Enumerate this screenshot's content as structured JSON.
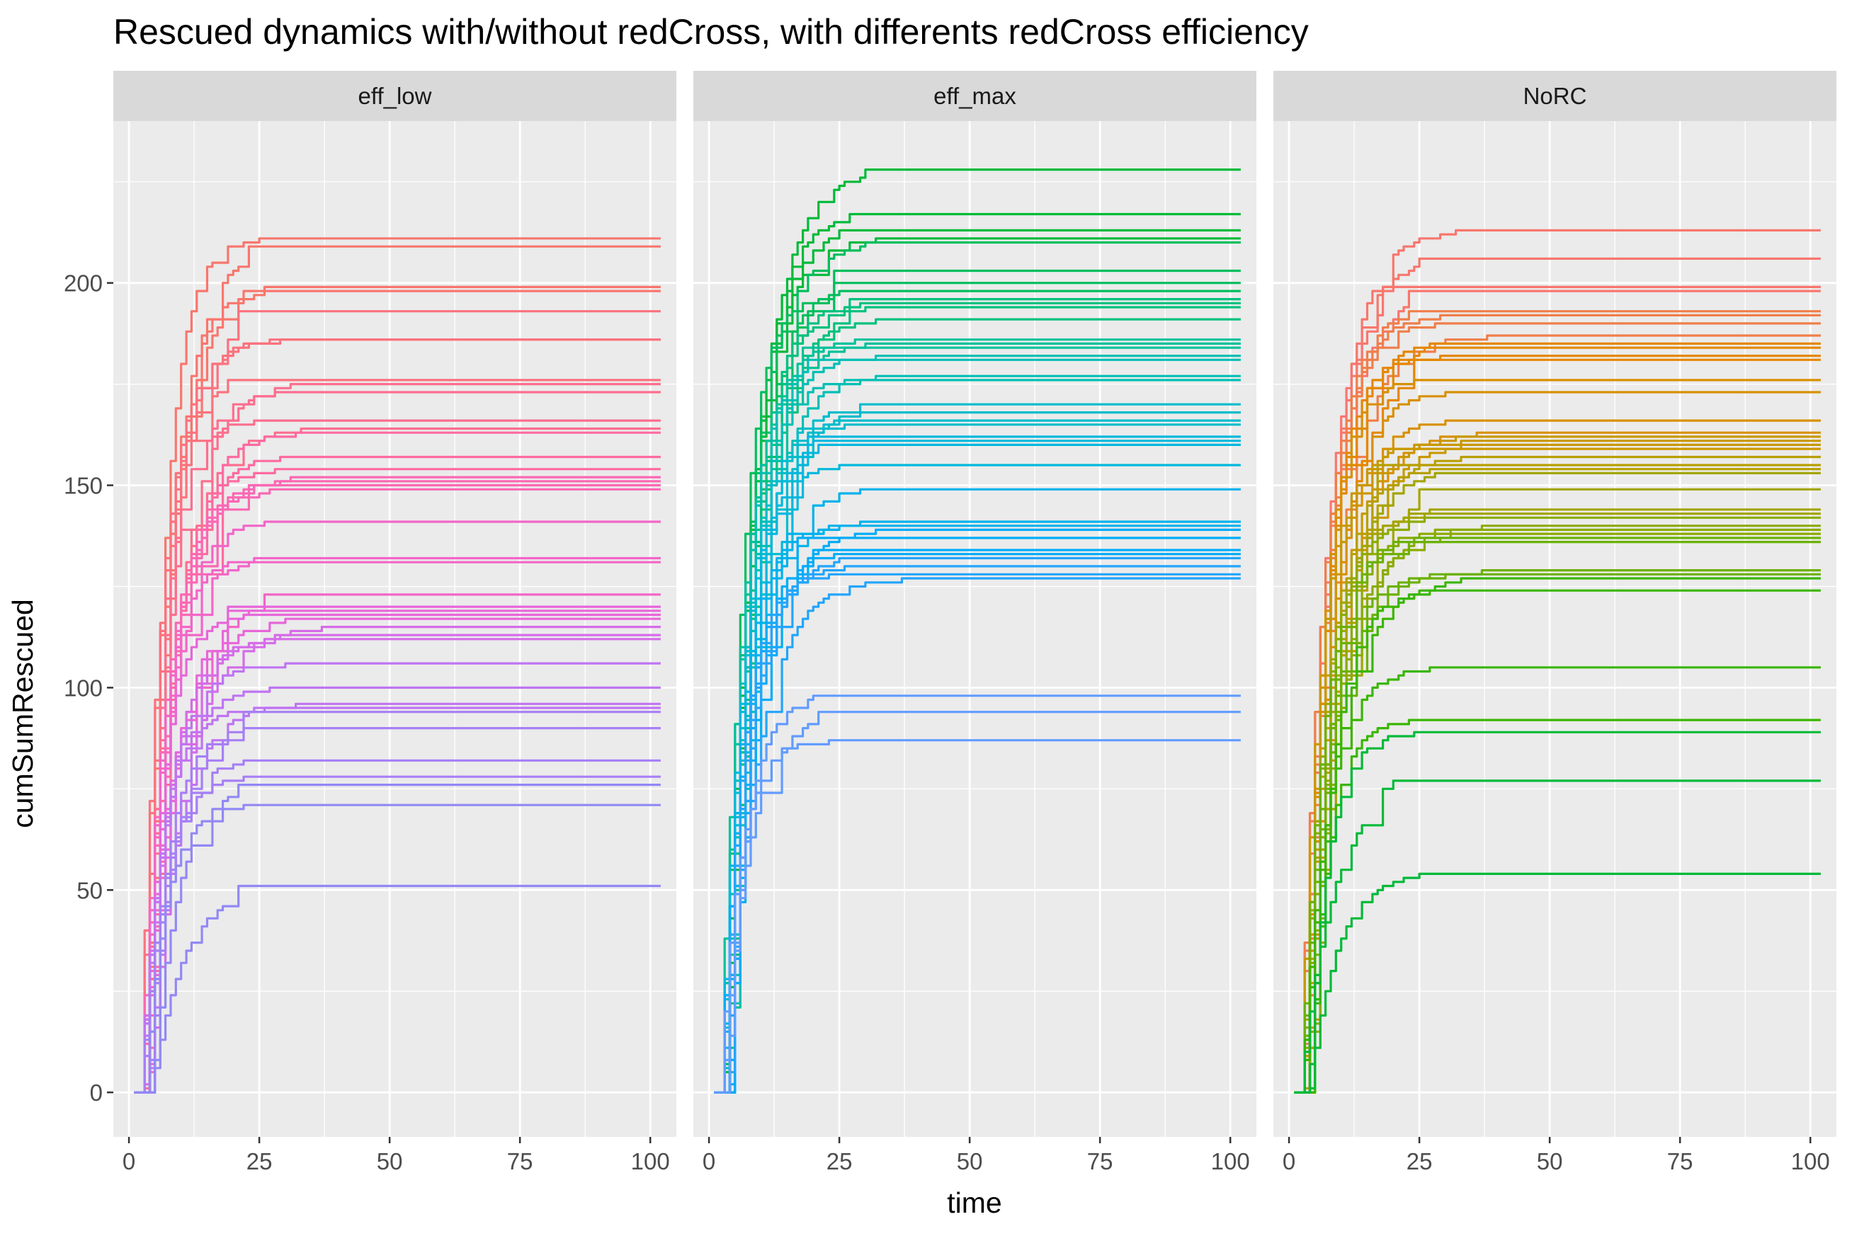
{
  "chart_data": {
    "type": "line",
    "title": "Rescued dynamics with/without redCross, with differents redCross efficiency",
    "xlabel": "time",
    "ylabel": "cumSumRescued",
    "xlim": [
      -3,
      105
    ],
    "ylim": [
      -11,
      240
    ],
    "x_ticks": [
      0,
      25,
      50,
      75,
      100
    ],
    "y_ticks": [
      0,
      50,
      100,
      150,
      200
    ],
    "x_tick_labels": [
      "0",
      "25",
      "50",
      "75",
      "100"
    ],
    "y_tick_labels": [
      "0",
      "50",
      "100",
      "150",
      "200"
    ],
    "grid": true,
    "legend": "none",
    "facets": [
      {
        "name": "eff_low",
        "colors": [
          "#f8766d",
          "#fb727d",
          "#fd6e8e",
          "#fe6aa0",
          "#fb67b4",
          "#f365c8",
          "#e766d9",
          "#d56ce8",
          "#bf74f2",
          "#a67ff6",
          "#9288f5"
        ],
        "final_values": [
          211,
          209,
          199,
          198,
          193,
          186,
          186,
          176,
          175,
          173,
          166,
          164,
          163,
          157,
          154,
          152,
          151,
          150,
          149,
          141,
          132,
          131,
          123,
          120,
          119,
          118,
          117,
          115,
          113,
          112,
          106,
          100,
          96,
          95,
          94,
          90,
          82,
          78,
          76,
          71,
          51
        ]
      },
      {
        "name": "eff_max",
        "colors": [
          "#00ba38",
          "#00be5c",
          "#00c17d",
          "#00c19a",
          "#00bfb4",
          "#00bccb",
          "#00b8dd",
          "#00b2ec",
          "#00acf7",
          "#22a5fb",
          "#619cff"
        ],
        "final_values": [
          228,
          217,
          213,
          211,
          210,
          203,
          200,
          198,
          196,
          195,
          194,
          191,
          186,
          185,
          184,
          182,
          181,
          177,
          176,
          170,
          168,
          166,
          165,
          162,
          161,
          160,
          155,
          149,
          141,
          140,
          139,
          137,
          134,
          133,
          132,
          130,
          128,
          127,
          98,
          94,
          87
        ]
      },
      {
        "name": "NoRC",
        "colors": [
          "#f8766d",
          "#f07e4a",
          "#e58700",
          "#d89000",
          "#c99800",
          "#b79f00",
          "#a3a500",
          "#8bab00",
          "#6bb100",
          "#39b600",
          "#00ba38"
        ],
        "final_values": [
          213,
          206,
          199,
          198,
          193,
          192,
          190,
          187,
          185,
          184,
          182,
          181,
          176,
          173,
          166,
          163,
          162,
          161,
          160,
          159,
          157,
          155,
          154,
          153,
          149,
          144,
          143,
          142,
          140,
          139,
          138,
          137,
          136,
          129,
          128,
          127,
          124,
          105,
          92,
          89,
          77,
          54
        ]
      }
    ]
  }
}
